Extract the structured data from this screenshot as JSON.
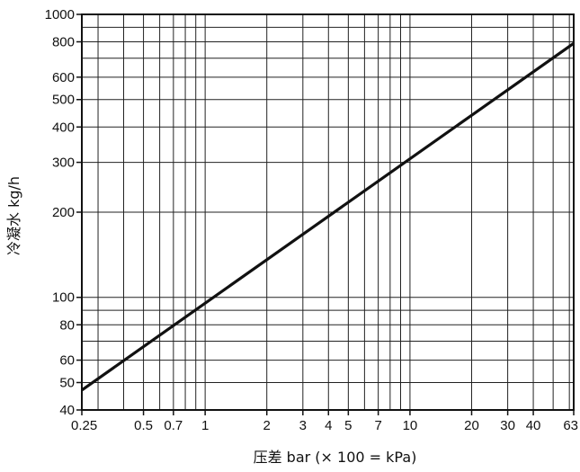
{
  "chart_data": {
    "type": "line",
    "title": "",
    "xlabel": "压差 bar (× 100 = kPa)",
    "ylabel": "冷凝水 kg/h",
    "xscale": "log",
    "yscale": "log",
    "xlim": [
      0.25,
      63
    ],
    "ylim": [
      40,
      1000
    ],
    "grid": true,
    "x_grid": [
      0.25,
      0.3,
      0.4,
      0.5,
      0.6,
      0.7,
      0.8,
      0.9,
      1,
      2,
      3,
      4,
      5,
      6,
      7,
      8,
      9,
      10,
      20,
      30,
      40,
      50,
      60,
      63
    ],
    "y_grid": [
      40,
      50,
      60,
      70,
      80,
      90,
      100,
      200,
      300,
      400,
      500,
      600,
      700,
      800,
      900,
      1000
    ],
    "x_ticks": [
      {
        "value": 0.25,
        "label": "0.25"
      },
      {
        "value": 0.5,
        "label": "0.5"
      },
      {
        "value": 0.7,
        "label": "0.7"
      },
      {
        "value": 1,
        "label": "1"
      },
      {
        "value": 2,
        "label": "2"
      },
      {
        "value": 3,
        "label": "3"
      },
      {
        "value": 4,
        "label": "4"
      },
      {
        "value": 5,
        "label": "5"
      },
      {
        "value": 7,
        "label": "7"
      },
      {
        "value": 10,
        "label": "10"
      },
      {
        "value": 20,
        "label": "20"
      },
      {
        "value": 30,
        "label": "30"
      },
      {
        "value": 40,
        "label": "40"
      },
      {
        "value": 63,
        "label": "63"
      }
    ],
    "y_ticks": [
      {
        "value": 1000,
        "label": "1000"
      },
      {
        "value": 800,
        "label": "800"
      },
      {
        "value": 600,
        "label": "600"
      },
      {
        "value": 500,
        "label": "500"
      },
      {
        "value": 400,
        "label": "400"
      },
      {
        "value": 300,
        "label": "300"
      },
      {
        "value": 200,
        "label": "200"
      },
      {
        "value": 100,
        "label": "100"
      },
      {
        "value": 80,
        "label": "80"
      },
      {
        "value": 60,
        "label": "60"
      },
      {
        "value": 50,
        "label": "50"
      },
      {
        "value": 40,
        "label": "40"
      }
    ],
    "series": [
      {
        "x": [
          0.25,
          63
        ],
        "y": [
          47,
          790
        ]
      }
    ]
  }
}
